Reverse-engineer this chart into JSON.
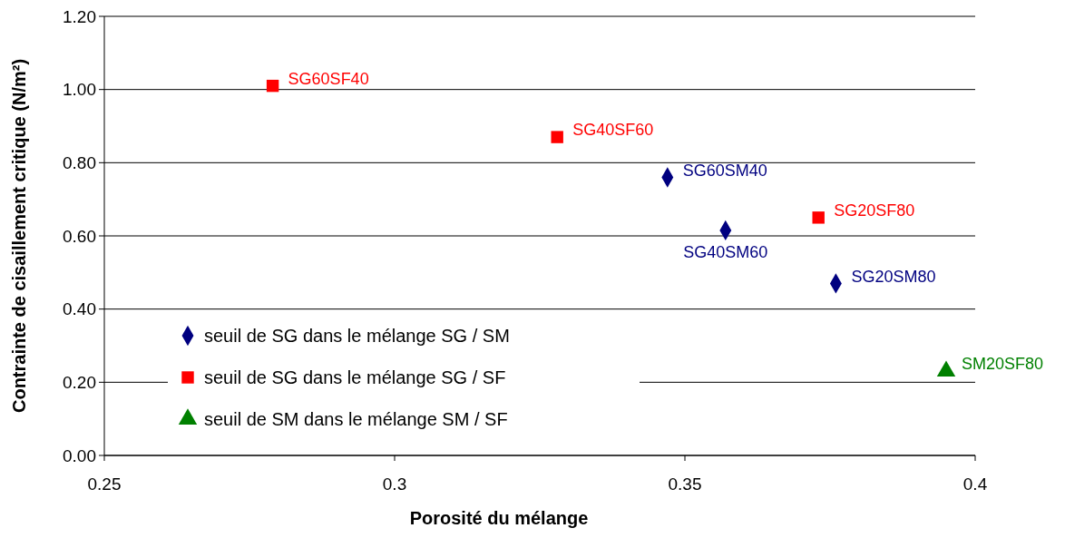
{
  "chart_data": {
    "type": "scatter",
    "xlabel": "Porosité du mélange",
    "ylabel": "Contrainte de cisaillement critique (N/m²)",
    "xlim": [
      0.25,
      0.4
    ],
    "xticks": [
      0.25,
      0.3,
      0.35,
      0.4
    ],
    "ylim": [
      0,
      1.2
    ],
    "yticks": [
      {
        "value": 0,
        "label": "0.00"
      },
      {
        "value": 0.2,
        "label": "0.20"
      },
      {
        "value": 0.4,
        "label": "0.40"
      },
      {
        "value": 0.6,
        "label": "0.60"
      },
      {
        "value": 0.8,
        "label": "0.80"
      },
      {
        "value": 1,
        "label": "1.00"
      },
      {
        "value": 1.2,
        "label": "1.20"
      }
    ],
    "grid": "y",
    "legend": "bottom left",
    "series": [
      {
        "name": "seuil de SG dans le mélange SG / SM",
        "color": "#000080",
        "marker": "diamond",
        "x": [
          0.347,
          0.357,
          0.376
        ],
        "values": [
          0.76,
          0.615,
          0.47
        ]
      },
      {
        "name": "seuil de SG dans le mélange SG / SF",
        "color": "#ff0000",
        "marker": "square",
        "x": [
          0.279,
          0.328,
          0.373
        ],
        "values": [
          1.01,
          0.87,
          0.65
        ]
      },
      {
        "name": "seuil de SM dans le mélange SM / SF",
        "color": "#008000",
        "marker": "triangle",
        "x": [
          0.395
        ],
        "values": [
          0.23
        ]
      }
    ],
    "annotations": [
      {
        "text": "SG60SF40",
        "x": 0.279,
        "y": 1.01
      },
      {
        "text": "SG40SF60",
        "x": 0.328,
        "y": 0.87
      },
      {
        "text": "SG20SF80",
        "x": 0.373,
        "y": 0.65
      },
      {
        "text": "SG60SM40",
        "x": 0.347,
        "y": 0.76
      },
      {
        "text": "SG40SM60",
        "x": 0.357,
        "y": 0.615
      },
      {
        "text": "SG20SM80",
        "x": 0.376,
        "y": 0.47
      },
      {
        "text": "SM20SF80",
        "x": 0.395,
        "y": 0.23
      }
    ]
  }
}
